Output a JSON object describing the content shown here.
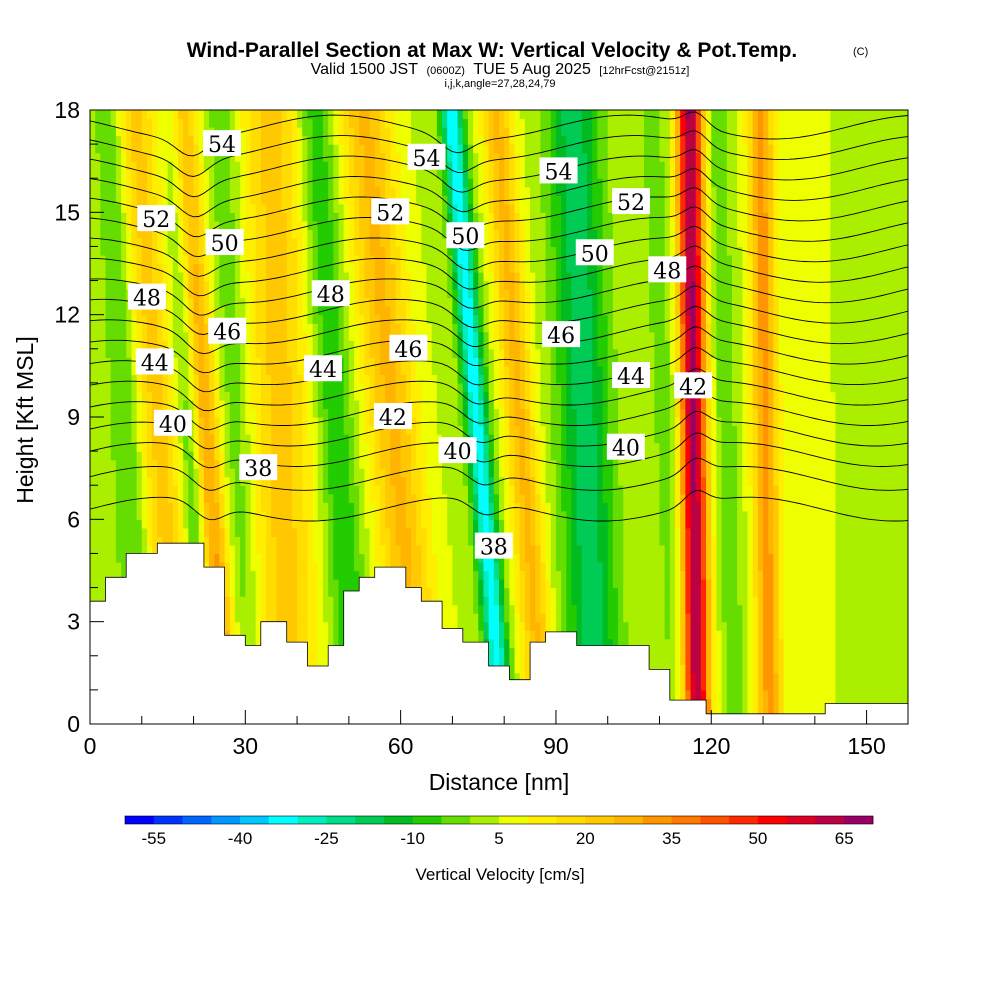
{
  "chart_data": {
    "type": "heatmap",
    "title": "Wind-Parallel Section at Max W: Vertical Velocity & Pot.Temp.",
    "title_mark": "(C)",
    "subtitle": {
      "valid": "Valid 1500 JST",
      "utc": "(0600Z)",
      "date": "TUE 5 Aug 2025",
      "forecast": "[12hrFcst@2151z]"
    },
    "grid_info": "i,j,k,angle=27,28,24,79",
    "xlabel": "Distance [nm]",
    "ylabel": "Height [Kft MSL]",
    "xlim": [
      0,
      158
    ],
    "ylim": [
      0,
      18
    ],
    "x_ticks": [
      "0",
      "30",
      "60",
      "90",
      "120",
      "150"
    ],
    "y_ticks": [
      "0",
      "3",
      "6",
      "9",
      "12",
      "15",
      "18"
    ],
    "colorbar": {
      "title": "Vertical Velocity [cm/s]",
      "range": [
        -60,
        70
      ],
      "levels": [
        -60,
        -55,
        -50,
        -45,
        -40,
        -35,
        -30,
        -25,
        -20,
        -15,
        -10,
        -5,
        0,
        5,
        10,
        15,
        20,
        25,
        30,
        35,
        40,
        45,
        50,
        55,
        60,
        65,
        70
      ],
      "colors": [
        "#0000ff",
        "#0032ff",
        "#0064ff",
        "#0096ff",
        "#00c8ff",
        "#00ffff",
        "#00eebb",
        "#00dd88",
        "#00cc55",
        "#00bb22",
        "#22cc00",
        "#66dd00",
        "#aaee00",
        "#eeff00",
        "#ffee00",
        "#ffdd00",
        "#ffc800",
        "#ffb400",
        "#ff9600",
        "#ff7800",
        "#ff5000",
        "#ff2800",
        "#ff0000",
        "#dd0022",
        "#bb0044",
        "#990066",
        "#660088"
      ],
      "tick_labels": [
        "-55",
        "-40",
        "-25",
        "-10",
        "5",
        "20",
        "35",
        "50",
        "65"
      ]
    },
    "theta_contour_labels": [
      {
        "text": "54",
        "x": 25.5,
        "y": 17.0
      },
      {
        "text": "54",
        "x": 65.0,
        "y": 16.6
      },
      {
        "text": "54",
        "x": 90.5,
        "y": 16.2
      },
      {
        "text": "52",
        "x": 12.8,
        "y": 14.8
      },
      {
        "text": "52",
        "x": 58.0,
        "y": 15.0
      },
      {
        "text": "52",
        "x": 104.5,
        "y": 15.3
      },
      {
        "text": "50",
        "x": 26.0,
        "y": 14.1
      },
      {
        "text": "50",
        "x": 72.5,
        "y": 14.3
      },
      {
        "text": "50",
        "x": 97.5,
        "y": 13.8
      },
      {
        "text": "48",
        "x": 11.0,
        "y": 12.5
      },
      {
        "text": "48",
        "x": 46.5,
        "y": 12.6
      },
      {
        "text": "48",
        "x": 111.5,
        "y": 13.3
      },
      {
        "text": "46",
        "x": 26.5,
        "y": 11.5
      },
      {
        "text": "46",
        "x": 61.5,
        "y": 11.0
      },
      {
        "text": "46",
        "x": 91.0,
        "y": 11.4
      },
      {
        "text": "44",
        "x": 12.5,
        "y": 10.6
      },
      {
        "text": "44",
        "x": 45.0,
        "y": 10.4
      },
      {
        "text": "44",
        "x": 104.5,
        "y": 10.2
      },
      {
        "text": "42",
        "x": 58.5,
        "y": 9.0
      },
      {
        "text": "42",
        "x": 116.5,
        "y": 9.9
      },
      {
        "text": "40",
        "x": 16.0,
        "y": 8.8
      },
      {
        "text": "40",
        "x": 71.0,
        "y": 8.0
      },
      {
        "text": "40",
        "x": 103.5,
        "y": 8.1
      },
      {
        "text": "38",
        "x": 32.5,
        "y": 7.5
      },
      {
        "text": "38",
        "x": 78.0,
        "y": 5.2
      }
    ],
    "terrain_top_kft": [
      [
        0,
        3.6
      ],
      [
        3,
        4.3
      ],
      [
        7,
        5
      ],
      [
        13,
        5.3
      ],
      [
        22,
        4.6
      ],
      [
        26,
        2.6
      ],
      [
        30,
        2.3
      ],
      [
        33,
        3.0
      ],
      [
        38,
        2.4
      ],
      [
        42,
        1.7
      ],
      [
        46,
        2.3
      ],
      [
        49,
        3.9
      ],
      [
        52,
        4.3
      ],
      [
        55,
        4.6
      ],
      [
        61,
        4.0
      ],
      [
        64,
        3.6
      ],
      [
        68,
        2.8
      ],
      [
        72,
        2.4
      ],
      [
        77,
        1.7
      ],
      [
        81,
        1.3
      ],
      [
        85,
        2.4
      ],
      [
        88,
        2.7
      ],
      [
        94,
        2.3
      ],
      [
        108,
        1.6
      ],
      [
        112,
        0.7
      ],
      [
        116,
        0.7
      ],
      [
        119,
        0.3
      ],
      [
        128,
        0.3
      ],
      [
        142,
        0.6
      ],
      [
        158,
        0.6
      ]
    ]
  }
}
